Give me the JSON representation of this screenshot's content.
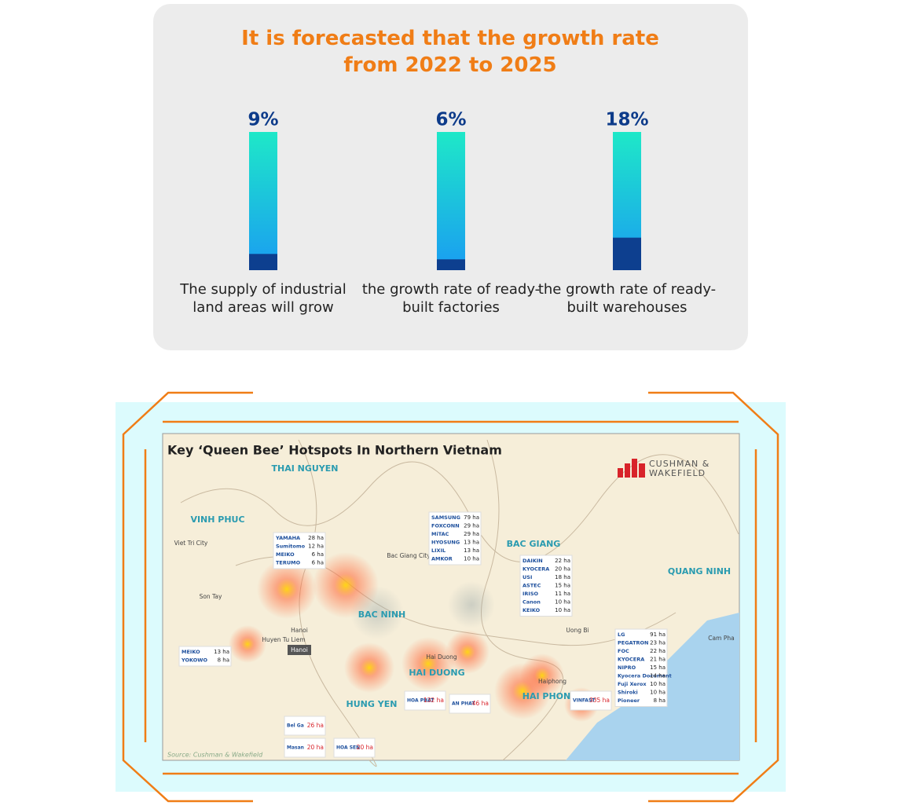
{
  "chart_data": {
    "type": "bar",
    "title": "It is forecasted that the growth rate from 2022 to 2025",
    "categories": [
      "The supply of industrial land areas will grow",
      "the growth rate of ready-built factories",
      "the growth rate of ready-built warehouses"
    ],
    "values": [
      9,
      6,
      18
    ],
    "value_labels": [
      "9%",
      "6%",
      "18%"
    ],
    "color": "#0d3f8f"
  },
  "map": {
    "title": "Key ‘Queen Bee’ Hotspots In Northern Vietnam",
    "brand": "CUSHMAN & WAKEFIELD",
    "source": "Source: Cushman & Wakefield",
    "regions": [
      "THAI NGUYEN",
      "VINH PHUC",
      "BAC GIANG",
      "QUANG NINH",
      "BAC NINH",
      "HAI DUONG",
      "HUNG YEN",
      "HAI PHONG"
    ],
    "cities": [
      "Hanoi",
      "Haiphong",
      "Bac Giang City",
      "Uong Bi",
      "Cam Pha",
      "Viet Tri City",
      "Son Tay",
      "Huyen Tu Liem",
      "Hai Duong"
    ],
    "groups": [
      [
        {
          "name": "YAMAHA",
          "area": "28 ha"
        },
        {
          "name": "Sumitomo",
          "area": "12 ha"
        },
        {
          "name": "MEIKO",
          "area": "6 ha"
        },
        {
          "name": "TERUMO",
          "area": "6 ha"
        }
      ],
      [
        {
          "name": "SAMSUNG",
          "area": "79 ha"
        },
        {
          "name": "FOXCONN",
          "area": "29 ha"
        },
        {
          "name": "MiTAC",
          "area": "29 ha"
        },
        {
          "name": "HYOSUNG",
          "area": "13 ha"
        },
        {
          "name": "LIXIL",
          "area": "13 ha"
        },
        {
          "name": "AMKOR",
          "area": "10 ha"
        }
      ],
      [
        {
          "name": "DAIKIN",
          "area": "22 ha"
        },
        {
          "name": "KYOCERA",
          "area": "20 ha"
        },
        {
          "name": "USI",
          "area": "18 ha"
        },
        {
          "name": "ASTEC",
          "area": "15 ha"
        },
        {
          "name": "IRISO",
          "area": "11 ha"
        },
        {
          "name": "Canon",
          "area": "10 ha"
        },
        {
          "name": "KEIKO",
          "area": "10 ha"
        }
      ],
      [
        {
          "name": "LG",
          "area": "91 ha"
        },
        {
          "name": "PEGATRON",
          "area": "23 ha"
        },
        {
          "name": "FOC",
          "area": "22 ha"
        },
        {
          "name": "KYOCERA",
          "area": "21 ha"
        },
        {
          "name": "NIPRO",
          "area": "15 ha"
        },
        {
          "name": "Kyocera Document",
          "area": "14 ha"
        },
        {
          "name": "Fuji Xerox",
          "area": "10 ha"
        },
        {
          "name": "Shiroki",
          "area": "10 ha"
        },
        {
          "name": "Pioneer",
          "area": "8 ha"
        }
      ],
      [
        {
          "name": "MEIKO",
          "area": "13 ha"
        },
        {
          "name": "YOKOWO",
          "area": "8 ha"
        }
      ],
      [
        {
          "name": "HOA PHAT",
          "area": "132 ha"
        }
      ],
      [
        {
          "name": "AN PHAT",
          "area": "46 ha"
        }
      ],
      [
        {
          "name": "VINFAST",
          "area": "335 ha"
        }
      ],
      [
        {
          "name": "Bel Ga",
          "area": "26 ha"
        }
      ],
      [
        {
          "name": "Masan",
          "area": "20 ha"
        }
      ],
      [
        {
          "name": "HOA SEN",
          "area": "20 ha"
        }
      ]
    ]
  }
}
